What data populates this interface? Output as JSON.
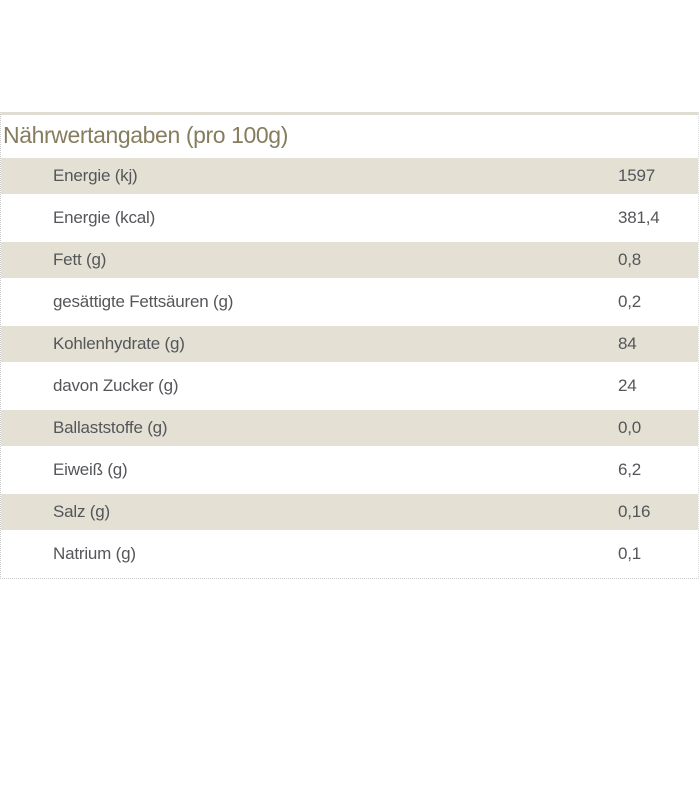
{
  "title": "Nährwertangaben (pro 100g)",
  "table": {
    "rows": [
      {
        "label": "Energie (kj)",
        "value": "1597"
      },
      {
        "label": "Energie (kcal)",
        "value": "381,4"
      },
      {
        "label": "Fett (g)",
        "value": "0,8"
      },
      {
        "label": "gesättigte Fettsäuren (g)",
        "value": "0,2"
      },
      {
        "label": "Kohlenhydrate (g)",
        "value": "84"
      },
      {
        "label": "davon Zucker (g)",
        "value": "24"
      },
      {
        "label": "Ballaststoffe (g)",
        "value": "0,0"
      },
      {
        "label": "Eiweiß (g)",
        "value": "6,2"
      },
      {
        "label": "Salz (g)",
        "value": "0,16"
      },
      {
        "label": "Natrium (g)",
        "value": "0,1"
      }
    ]
  },
  "colors": {
    "title_text": "#857d5d",
    "body_text": "#54565a",
    "row_alt_background": "#e4e1d4",
    "top_rule": "#e0ded3",
    "dotted_border": "#c9c9c9",
    "page_background": "#ffffff"
  }
}
